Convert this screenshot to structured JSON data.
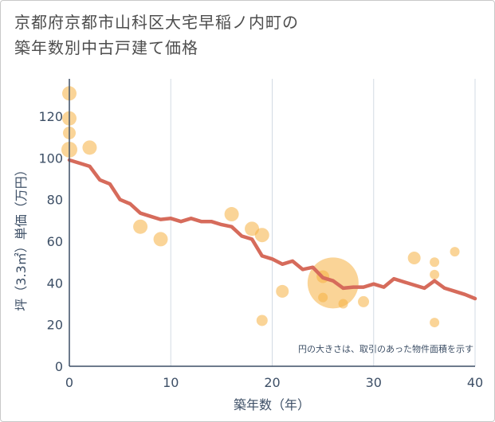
{
  "title": {
    "line1": "京都府京都市山科区大宅早稲ノ内町の",
    "line2": "築年数別中古戸建て価格"
  },
  "chart_data": {
    "type": "scatter+line",
    "xlabel": "築年数（年）",
    "ylabel": "坪（3.3㎡）単価（万円）",
    "xlim": [
      0,
      40
    ],
    "ylim": [
      0,
      138
    ],
    "xticks": [
      0,
      10,
      20,
      30,
      40
    ],
    "yticks": [
      0,
      20,
      40,
      60,
      80,
      100,
      120
    ],
    "grid": "vertical",
    "note": "円の大きさは、取引のあった物件面積を示す",
    "colors": {
      "line": "#d66b5b",
      "bubble": "#f5b041",
      "grid": "#d3dbe4",
      "axis": "#3d4f66"
    },
    "scatter": [
      {
        "x": 0,
        "y": 131,
        "size": 9
      },
      {
        "x": 0,
        "y": 119,
        "size": 9
      },
      {
        "x": 0,
        "y": 112,
        "size": 8
      },
      {
        "x": 0,
        "y": 104,
        "size": 10
      },
      {
        "x": 2,
        "y": 105,
        "size": 9
      },
      {
        "x": 7,
        "y": 67,
        "size": 9
      },
      {
        "x": 9,
        "y": 61,
        "size": 9
      },
      {
        "x": 16,
        "y": 73,
        "size": 9
      },
      {
        "x": 18,
        "y": 66,
        "size": 9
      },
      {
        "x": 19,
        "y": 63,
        "size": 9
      },
      {
        "x": 19,
        "y": 22,
        "size": 7
      },
      {
        "x": 21,
        "y": 36,
        "size": 8
      },
      {
        "x": 25,
        "y": 43,
        "size": 8
      },
      {
        "x": 25,
        "y": 33,
        "size": 6
      },
      {
        "x": 26,
        "y": 40,
        "size": 32
      },
      {
        "x": 27,
        "y": 30,
        "size": 6
      },
      {
        "x": 29,
        "y": 31,
        "size": 7
      },
      {
        "x": 34,
        "y": 52,
        "size": 8
      },
      {
        "x": 36,
        "y": 50,
        "size": 6
      },
      {
        "x": 36,
        "y": 44,
        "size": 6
      },
      {
        "x": 36,
        "y": 21,
        "size": 6
      },
      {
        "x": 38,
        "y": 55,
        "size": 6
      }
    ],
    "trend": {
      "x": [
        0,
        1,
        2,
        3,
        4,
        5,
        6,
        7,
        8,
        9,
        10,
        11,
        12,
        13,
        14,
        15,
        16,
        17,
        18,
        19,
        20,
        21,
        22,
        23,
        24,
        25,
        26,
        27,
        28,
        29,
        30,
        31,
        32,
        33,
        34,
        35,
        36,
        37,
        38,
        39,
        40
      ],
      "y": [
        99,
        97.5,
        96,
        89.5,
        87.5,
        80,
        78,
        73.5,
        72,
        70.5,
        71,
        69.5,
        71,
        69.5,
        69.5,
        68,
        67,
        62.5,
        61,
        53,
        51.5,
        49,
        50.5,
        46.5,
        47.5,
        42.5,
        41,
        37.5,
        38,
        38,
        39.5,
        38,
        42,
        40.5,
        39,
        37.5,
        41,
        37.5,
        36,
        34.5,
        32.5
      ]
    }
  }
}
